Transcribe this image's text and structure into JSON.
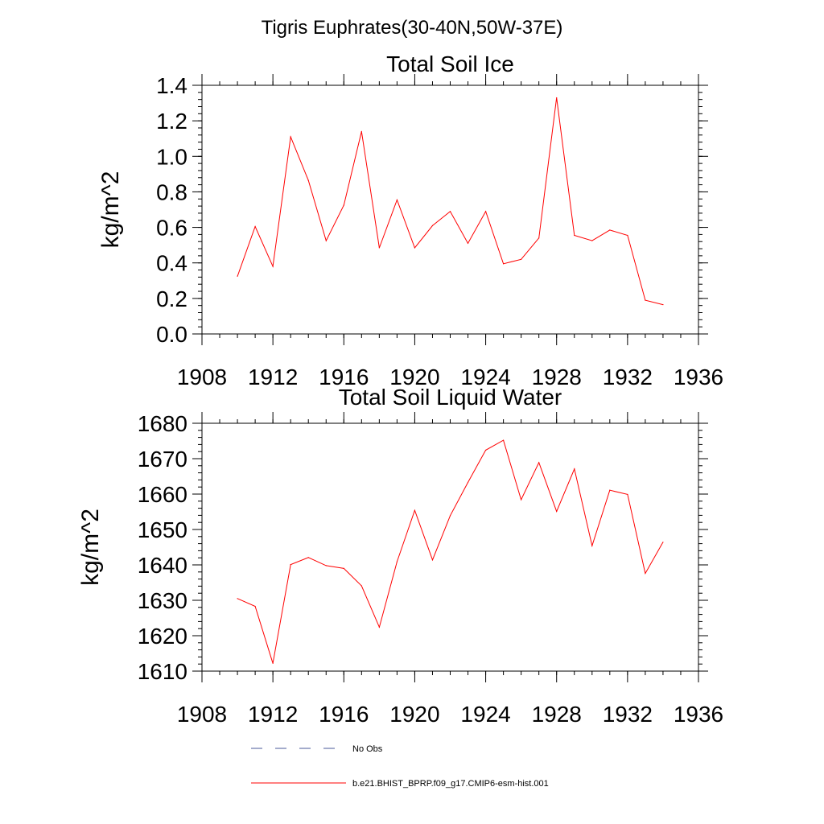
{
  "figure_title": "Tigris Euphrates(30-40N,50W-37E)",
  "legend": {
    "items": [
      {
        "label": "No Obs",
        "style": "dashed",
        "color": "#4a5a9a"
      },
      {
        "label": "b.e21.BHIST_BPRP.f09_g17.CMIP6-esm-hist.001",
        "style": "solid",
        "color": "#ff0000"
      }
    ]
  },
  "chart_data": [
    {
      "type": "line",
      "title": "Total Soil Ice",
      "xlabel": "",
      "ylabel": "kg/m^2",
      "xlim": [
        1908,
        1936
      ],
      "ylim": [
        0.0,
        1.4
      ],
      "x_major_ticks": [
        1908,
        1912,
        1916,
        1920,
        1924,
        1928,
        1932,
        1936
      ],
      "x_tick_labels": [
        "1908",
        "1912",
        "1916",
        "1920",
        "1924",
        "1928",
        "1932",
        "1936"
      ],
      "y_major_ticks": [
        0.0,
        0.2,
        0.4,
        0.6,
        0.8,
        1.0,
        1.2,
        1.4
      ],
      "y_tick_labels": [
        "0.0",
        "0.2",
        "0.4",
        "0.6",
        "0.8",
        "1.0",
        "1.2",
        "1.4"
      ],
      "y_minor_step": 0.04,
      "x_minor_step": 1,
      "grid": false,
      "series": [
        {
          "color": "#ff0000",
          "x": [
            1910,
            1911,
            1912,
            1913,
            1914,
            1915,
            1916,
            1917,
            1918,
            1919,
            1920,
            1921,
            1922,
            1923,
            1924,
            1925,
            1926,
            1927,
            1928,
            1929,
            1930,
            1931,
            1932,
            1933,
            1934
          ],
          "values": [
            0.325,
            0.605,
            0.38,
            1.11,
            0.865,
            0.525,
            0.725,
            1.14,
            0.485,
            0.755,
            0.485,
            0.61,
            0.69,
            0.51,
            0.69,
            0.395,
            0.42,
            0.54,
            1.33,
            0.555,
            0.525,
            0.585,
            0.555,
            0.19,
            0.165
          ]
        }
      ]
    },
    {
      "type": "line",
      "title": "Total Soil Liquid Water",
      "xlabel": "",
      "ylabel": "kg/m^2",
      "xlim": [
        1908,
        1936
      ],
      "ylim": [
        1610,
        1680
      ],
      "x_major_ticks": [
        1908,
        1912,
        1916,
        1920,
        1924,
        1928,
        1932,
        1936
      ],
      "x_tick_labels": [
        "1908",
        "1912",
        "1916",
        "1920",
        "1924",
        "1928",
        "1932",
        "1936"
      ],
      "y_major_ticks": [
        1610,
        1620,
        1630,
        1640,
        1650,
        1660,
        1670,
        1680
      ],
      "y_tick_labels": [
        "1610",
        "1620",
        "1630",
        "1640",
        "1650",
        "1660",
        "1670",
        "1680"
      ],
      "y_minor_step": 2,
      "x_minor_step": 1,
      "grid": false,
      "series": [
        {
          "color": "#ff0000",
          "x": [
            1910,
            1911,
            1912,
            1913,
            1914,
            1915,
            1916,
            1917,
            1918,
            1919,
            1920,
            1921,
            1922,
            1923,
            1924,
            1925,
            1926,
            1927,
            1928,
            1929,
            1930,
            1931,
            1932,
            1933,
            1934
          ],
          "values": [
            1630.5,
            1628.3,
            1612.2,
            1640.1,
            1642.1,
            1639.8,
            1639.0,
            1634.1,
            1622.4,
            1640.9,
            1655.4,
            1641.4,
            1653.9,
            1663.3,
            1672.4,
            1675.2,
            1658.4,
            1668.9,
            1655.1,
            1667.1,
            1645.4,
            1661.1,
            1659.9,
            1637.6,
            1646.4
          ]
        }
      ]
    }
  ]
}
